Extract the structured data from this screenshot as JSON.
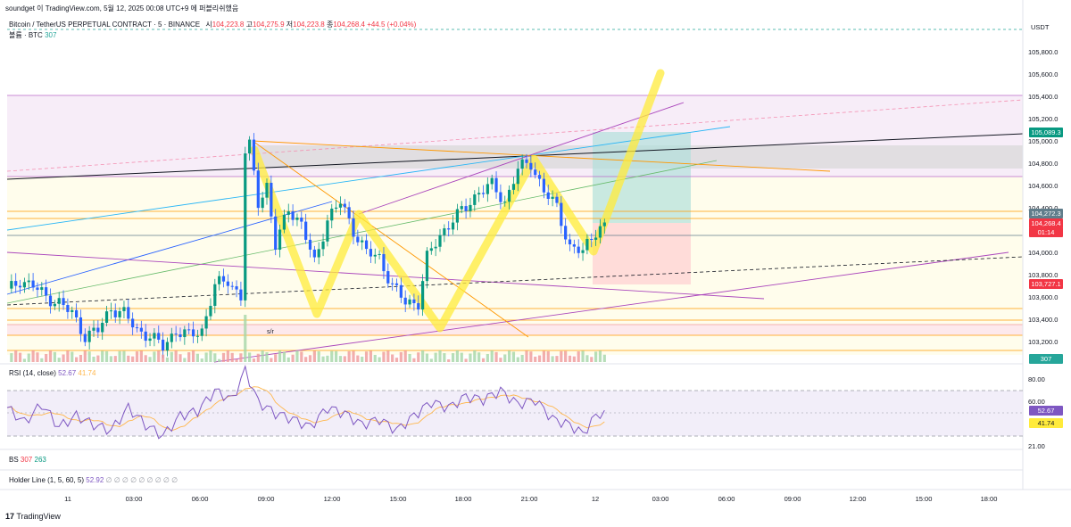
{
  "header": {
    "publisher_line": "soundget 이 TradingView.com, 5월 12, 2025 00:08 UTC+9 에 퍼블리쉬했음",
    "symbol_line": "Bitcoin / TetherUS PERPETUAL CONTRACT · 5 · BINANCE",
    "ohlc": {
      "open_label": "시",
      "open": "104,223.8",
      "high_label": "고",
      "high": "104,275.9",
      "low_label": "저",
      "low": "104,223.8",
      "close_label": "종",
      "close": "104,268.4",
      "change": "+44.5 (+0.04%)"
    },
    "volume_label": "볼륨 · BTC",
    "volume_value": "307"
  },
  "price_axis": {
    "currency": "USDT",
    "ticks": [
      "105,800.0",
      "105,600.0",
      "105,400.0",
      "105,200.0",
      "105,000.0",
      "104,800.0",
      "104,600.0",
      "104,400.0",
      "104,000.0",
      "103,800.0",
      "103,600.0",
      "103,400.0",
      "103,200.0"
    ],
    "tags": {
      "level_top": "105,089.3",
      "level_mid": "104,272.3",
      "last_price": "104,268.4",
      "countdown": "01:14",
      "level_low": "103,727.1",
      "volume": "307"
    }
  },
  "rsi": {
    "label": "RSI (14, close)",
    "value": "52.67",
    "ma_value": "41.74",
    "ticks": [
      "80.00",
      "60.00",
      "40.00",
      "21.00"
    ]
  },
  "bs": {
    "label": "BS",
    "v1": "307",
    "v2": "263"
  },
  "holder": {
    "label": "Holder Line (1, 5, 60, 5)",
    "value": "52.92",
    "empty_values": "∅ ∅ ∅ ∅ ∅ ∅ ∅ ∅ ∅"
  },
  "annotation": "s/r",
  "time_axis": [
    "11",
    "03:00",
    "06:00",
    "09:00",
    "12:00",
    "15:00",
    "18:00",
    "21:00",
    "12",
    "03:00",
    "06:00",
    "09:00",
    "12:00",
    "15:00",
    "18:00"
  ],
  "branding": {
    "logo_text": "TradingView"
  },
  "colors": {
    "up": "#089981",
    "down": "#2962ff",
    "accent": "#f23645",
    "yellow_path": "#ffeb3b"
  },
  "chart_data": {
    "type": "candlestick",
    "title": "Bitcoin / TetherUS PERPETUAL CONTRACT · 5 · BINANCE",
    "ylim": [
      103100,
      105900
    ],
    "price_path": [
      [
        0,
        103650
      ],
      [
        3,
        103750
      ],
      [
        6,
        103700
      ],
      [
        9,
        103600
      ],
      [
        12,
        103550
      ],
      [
        15,
        103450
      ],
      [
        18,
        103250
      ],
      [
        21,
        103300
      ],
      [
        24,
        103500
      ],
      [
        27,
        103450
      ],
      [
        30,
        103300
      ],
      [
        33,
        103250
      ],
      [
        36,
        103150
      ],
      [
        39,
        103300
      ],
      [
        42,
        103250
      ],
      [
        45,
        103300
      ],
      [
        48,
        103700
      ],
      [
        51,
        103750
      ],
      [
        54,
        103600
      ],
      [
        55,
        104900
      ],
      [
        56,
        104950
      ],
      [
        58,
        104450
      ],
      [
        60,
        104600
      ],
      [
        62,
        104050
      ],
      [
        65,
        104400
      ],
      [
        68,
        104250
      ],
      [
        71,
        103900
      ],
      [
        74,
        104300
      ],
      [
        77,
        104450
      ],
      [
        80,
        104200
      ],
      [
        83,
        104000
      ],
      [
        86,
        103950
      ],
      [
        89,
        103700
      ],
      [
        92,
        103550
      ],
      [
        95,
        103550
      ],
      [
        97,
        103950
      ],
      [
        100,
        104150
      ],
      [
        103,
        104300
      ],
      [
        106,
        104400
      ],
      [
        109,
        104550
      ],
      [
        112,
        104600
      ],
      [
        115,
        104450
      ],
      [
        118,
        104750
      ],
      [
        121,
        104800
      ],
      [
        124,
        104550
      ],
      [
        127,
        104400
      ],
      [
        130,
        104050
      ],
      [
        133,
        104000
      ],
      [
        136,
        104200
      ],
      [
        138,
        104268
      ]
    ],
    "rsi_path": [
      [
        0,
        55
      ],
      [
        4,
        42
      ],
      [
        8,
        58
      ],
      [
        12,
        38
      ],
      [
        16,
        48
      ],
      [
        20,
        40
      ],
      [
        24,
        35
      ],
      [
        28,
        55
      ],
      [
        32,
        40
      ],
      [
        36,
        30
      ],
      [
        40,
        48
      ],
      [
        44,
        52
      ],
      [
        48,
        70
      ],
      [
        52,
        62
      ],
      [
        55,
        88
      ],
      [
        58,
        60
      ],
      [
        62,
        50
      ],
      [
        66,
        45
      ],
      [
        70,
        38
      ],
      [
        74,
        55
      ],
      [
        78,
        50
      ],
      [
        82,
        40
      ],
      [
        86,
        45
      ],
      [
        90,
        35
      ],
      [
        94,
        48
      ],
      [
        98,
        60
      ],
      [
        102,
        55
      ],
      [
        106,
        65
      ],
      [
        110,
        62
      ],
      [
        114,
        70
      ],
      [
        118,
        58
      ],
      [
        122,
        62
      ],
      [
        126,
        45
      ],
      [
        130,
        40
      ],
      [
        133,
        32
      ],
      [
        136,
        48
      ],
      [
        138,
        52.67
      ]
    ]
  }
}
